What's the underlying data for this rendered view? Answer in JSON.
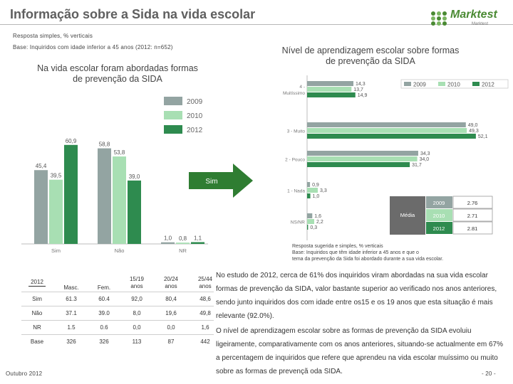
{
  "page": {
    "title": "Informação sobre a Sida na vida escolar",
    "note_resposta": "Resposta simples, % verticais",
    "note_base": "Base: Inquiridos com idade inferior a 45 anos (2012: n=652)",
    "footer_date": "Outubro 2012",
    "page_number": "- 20 -",
    "logo_text": "Marktest",
    "logo_sub": "Marktest",
    "arrow_label": "Sim",
    "right_note": [
      "Resposta sugerida e simples, % verticais",
      "Base: Inquiridos que têm idade inferior a 45 anos e que o",
      "tema da prevenção da Sida foi abordado durante a sua vida escolar."
    ],
    "paragraphs": [
      "No estudo de 2012, cerca de 61% dos inquiridos viram abordadas na sua vida escolar formas de prevenção da SIDA, valor bastante superior ao verificado nos anos anteriores, sendo junto inquiridos dos com idade entre os15 e os 19 anos que esta situação é mais relevante (92.0%).",
      "O nível de aprendizagem escolar sobre as formas de prevenção da SIDA evoluiu ligeiramente, comparativamente com os anos anteriores, situando-se actualmente em 67% a percentagem de inquiridos que refere que aprendeu na vida escolar muíssimo ou muito sobre as formas de prevençã oda SIDA."
    ],
    "colors": {
      "c2009": "#93a4a2",
      "c2010": "#a8dfb3",
      "c2012": "#2e8b4f",
      "arrow": "#2f7d32"
    }
  },
  "chart_data": [
    {
      "type": "bar",
      "title": "Na vida escolar foram abordadas formas de prevenção da SIDA",
      "categories": [
        "Sim",
        "Não",
        "NR"
      ],
      "series": [
        {
          "name": "2009",
          "values": [
            45.4,
            58.8,
            1.0
          ]
        },
        {
          "name": "2010",
          "values": [
            39.5,
            53.8,
            0.8
          ]
        },
        {
          "name": "2012",
          "values": [
            60.9,
            39.0,
            1.1
          ]
        }
      ],
      "value_labels": [
        [
          "45,4",
          "58,8",
          "1,0"
        ],
        [
          "39,5",
          "53,8",
          "0,8"
        ],
        [
          "60,9",
          "39,0",
          "1,1"
        ]
      ],
      "ylim": [
        0,
        70
      ],
      "legend": "top-right"
    },
    {
      "type": "bar",
      "orientation": "horizontal",
      "title": "Nível de aprendizagem escolar sobre formas de prevenção da SIDA",
      "categories": [
        "4 - Muitíssimo",
        "3 - Muito",
        "2 - Pouco",
        "1 - Nada",
        "NS/NR"
      ],
      "category_labels": [
        [
          "4 -",
          "Muitíssimo"
        ],
        [
          "3 - Muito"
        ],
        [
          "2 - Pouco"
        ],
        [
          "1 - Nada"
        ],
        [
          "NS/NR"
        ]
      ],
      "series": [
        {
          "name": "2009",
          "values": [
            14.3,
            49.0,
            34.3,
            0.9,
            1.6
          ]
        },
        {
          "name": "2010",
          "values": [
            13.7,
            49.3,
            34.0,
            3.3,
            2.2
          ]
        },
        {
          "name": "2012",
          "values": [
            14.9,
            52.1,
            31.7,
            1.0,
            0.3
          ]
        }
      ],
      "value_labels": [
        [
          "14,3",
          "49,0",
          "34,3",
          "0,9",
          "1,6"
        ],
        [
          "13,7",
          "49,3",
          "34,0",
          "3,3",
          "2,2"
        ],
        [
          "14,9",
          "52,1",
          "31,7",
          "1,0",
          "0,3"
        ]
      ],
      "xlim": [
        0,
        60
      ],
      "legend": "top",
      "media": {
        "label": "Média",
        "rows": [
          [
            "2009",
            "2.76"
          ],
          [
            "2010",
            "2.71"
          ],
          [
            "2012",
            "2.81"
          ]
        ]
      }
    },
    {
      "type": "table",
      "header": [
        "2012",
        "Masc.",
        "Fem.",
        "15/19 anos",
        "20/24 anos",
        "25/44 anos"
      ],
      "header_lines": [
        [
          "2012"
        ],
        [
          "Masc."
        ],
        [
          "Fem."
        ],
        [
          "15/19",
          "anos"
        ],
        [
          "20/24",
          "anos"
        ],
        [
          "25/44",
          "anos"
        ]
      ],
      "rows": [
        [
          "Sim",
          "61.3",
          "60.4",
          "92,0",
          "80,4",
          "48,6"
        ],
        [
          "Não",
          "37.1",
          "39.0",
          "8,0",
          "19,6",
          "49,8"
        ],
        [
          "NR",
          "1.5",
          "0.6",
          "0,0",
          "0,0",
          "1,6"
        ],
        [
          "Base",
          "326",
          "326",
          "113",
          "87",
          "442"
        ]
      ]
    }
  ]
}
